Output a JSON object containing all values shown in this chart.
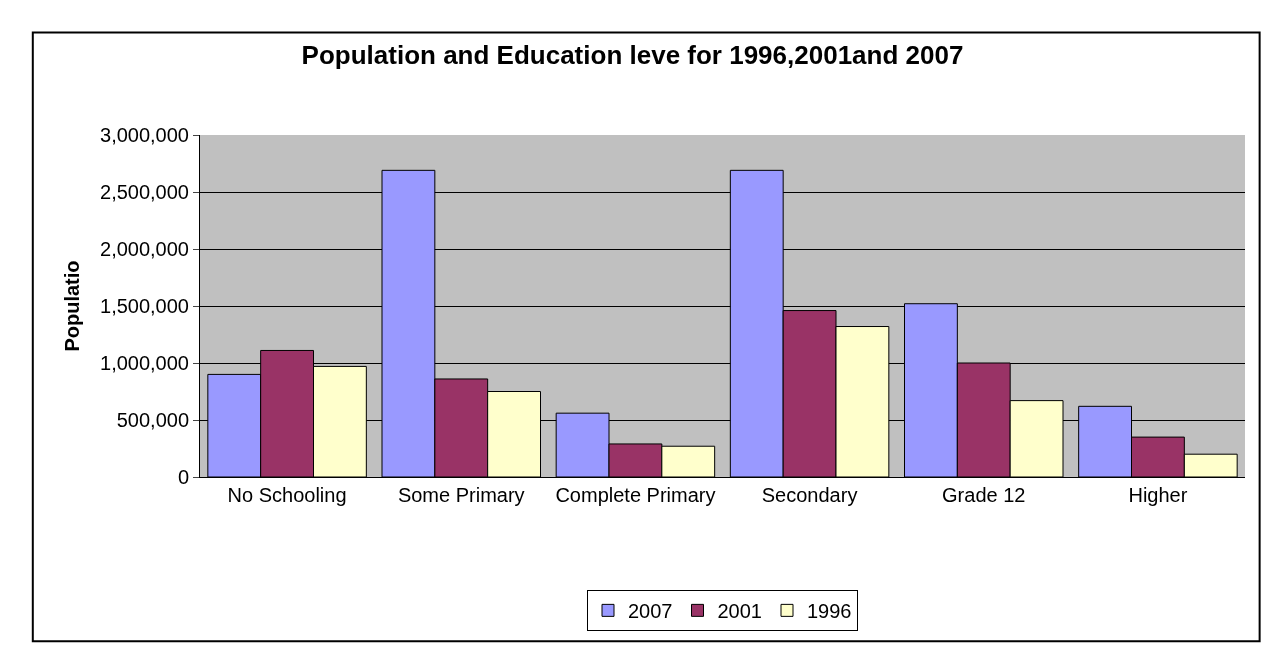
{
  "chart_data": {
    "type": "bar",
    "title": "Population and Education leve for 1996,2001and 2007",
    "ylabel": "Populatio",
    "categories": [
      "No Schooling",
      "Some Primary",
      "Complete Primary",
      "Secondary",
      "Grade 12",
      "Higher"
    ],
    "series": [
      {
        "name": "2007",
        "color": "#9999ff",
        "values": [
          900000,
          2690000,
          560000,
          2690000,
          1520000,
          620000
        ]
      },
      {
        "name": "2001",
        "color": "#993366",
        "values": [
          1110000,
          860000,
          290000,
          1460000,
          1000000,
          350000
        ]
      },
      {
        "name": "1996",
        "color": "#ffffcc",
        "values": [
          970000,
          750000,
          270000,
          1320000,
          670000,
          200000
        ]
      }
    ],
    "ylim": [
      0,
      3000000
    ],
    "yticks": [
      {
        "value": 0,
        "label": "0"
      },
      {
        "value": 500000,
        "label": "500,000"
      },
      {
        "value": 1000000,
        "label": "1,000,000"
      },
      {
        "value": 1500000,
        "label": "1,500,000"
      },
      {
        "value": 2000000,
        "label": "2,000,000"
      },
      {
        "value": 2500000,
        "label": "2,500,000"
      },
      {
        "value": 3000000,
        "label": "3,000,000"
      }
    ],
    "grid": "y",
    "legend": "bottom"
  }
}
